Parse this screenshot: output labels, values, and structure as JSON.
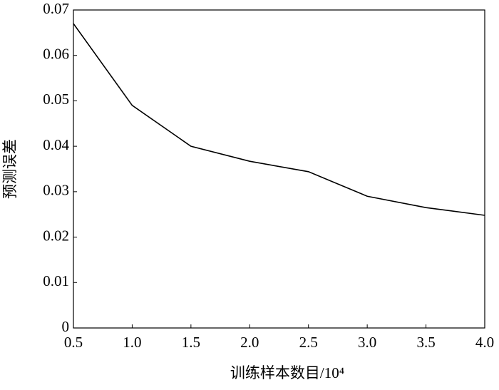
{
  "chart_data": {
    "type": "line",
    "x_label": "训练样本数目/10⁴",
    "y_label": "预测误差",
    "x": [
      0.5,
      1.0,
      1.5,
      2.0,
      2.5,
      3.0,
      3.5,
      4.0
    ],
    "series": [
      {
        "color": "#000000",
        "values": [
          0.067,
          0.049,
          0.04,
          0.0367,
          0.0344,
          0.029,
          0.0265,
          0.0248
        ]
      }
    ],
    "xlim": [
      0.5,
      4.0
    ],
    "xticks": [
      0.5,
      {
        "value": 1,
        "label": "1.0"
      },
      1.5,
      {
        "value": 2,
        "label": "2.0"
      },
      2.5,
      {
        "value": 3,
        "label": "3.0"
      },
      3.5,
      {
        "value": 4,
        "label": "4.0"
      }
    ],
    "ylim": [
      0,
      0.07
    ],
    "yticks": [
      0,
      0.01,
      0.02,
      0.03,
      0.04,
      0.05,
      0.06,
      0.07
    ]
  }
}
